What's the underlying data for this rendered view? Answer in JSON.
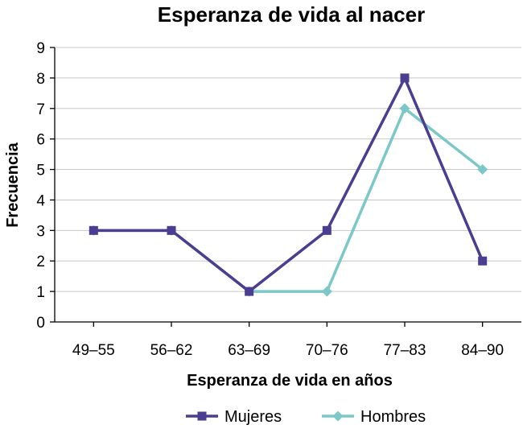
{
  "chart_data": {
    "type": "line",
    "title": "Esperanza de vida al nacer",
    "xlabel": "Esperanza de vida en años",
    "ylabel": "Frecuencia",
    "categories": [
      "49–55",
      "56–62",
      "63–69",
      "70–76",
      "77–83",
      "84–90"
    ],
    "ylim": [
      0,
      9
    ],
    "yticks": [
      "0",
      "1",
      "2",
      "3",
      "4",
      "5",
      "6",
      "7",
      "8",
      "9"
    ],
    "grid": true,
    "legend_position": "bottom",
    "series": [
      {
        "name": "Mujeres",
        "values": [
          3,
          3,
          1,
          3,
          8,
          2
        ],
        "color": "#4b3d8f",
        "marker": "square"
      },
      {
        "name": "Hombres",
        "values": [
          3,
          3,
          1,
          1,
          7,
          5
        ],
        "color": "#7cc8c8",
        "marker": "diamond"
      }
    ]
  }
}
